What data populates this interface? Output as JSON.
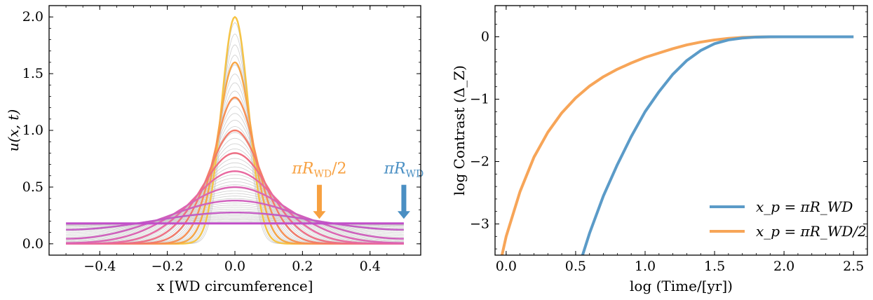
{
  "chart_data": [
    {
      "type": "line",
      "title": "",
      "xlabel": "x [WD circumference]",
      "ylabel": "u(x, t)",
      "xlim": [
        -0.55,
        0.55
      ],
      "ylim": [
        -0.1,
        2.1
      ],
      "xticks": [
        -0.4,
        -0.2,
        0.0,
        0.2,
        0.4
      ],
      "xtick_labels": [
        "−0.4",
        "−0.2",
        "0.0",
        "0.2",
        "0.4"
      ],
      "yticks": [
        0.0,
        0.5,
        1.0,
        1.5,
        2.0
      ],
      "ytick_labels": [
        "0.0",
        "0.5",
        "1.0",
        "1.5",
        "2.0"
      ],
      "domain": [
        -0.5,
        0.5
      ],
      "gray_profiles": {
        "count": 48,
        "sigma_min": 0.035,
        "sigma_max": 0.42,
        "color": "#bdbdbd"
      },
      "highlighted_profiles": [
        {
          "sigma": 0.04,
          "color": "#f6c445"
        },
        {
          "sigma": 0.05,
          "color": "#f7a646"
        },
        {
          "sigma": 0.062,
          "color": "#f79055"
        },
        {
          "sigma": 0.08,
          "color": "#f37b6a"
        },
        {
          "sigma": 0.1,
          "color": "#ee6f84"
        },
        {
          "sigma": 0.125,
          "color": "#e869a0"
        },
        {
          "sigma": 0.16,
          "color": "#dc64b4"
        },
        {
          "sigma": 0.21,
          "color": "#cf5fbd"
        },
        {
          "sigma": 0.29,
          "color": "#c35bc4"
        }
      ],
      "flat_level": {
        "y": 0.18,
        "color": "#c14fc9"
      },
      "annotations": [
        {
          "text": "πR_WD/2",
          "x": 0.25,
          "y_text": 0.62,
          "arrow_from": 0.52,
          "arrow_to": 0.22,
          "color": "#f7a040"
        },
        {
          "text": "πR_WD",
          "x": 0.5,
          "y_text": 0.62,
          "arrow_from": 0.52,
          "arrow_to": 0.22,
          "color": "#4a8fc3"
        }
      ]
    },
    {
      "type": "line",
      "title": "",
      "xlabel": "log (Time/[yr])",
      "ylabel": "log Contrast (Δ_Z)",
      "xlim": [
        -0.08,
        2.6
      ],
      "ylim": [
        -3.5,
        0.5
      ],
      "xticks": [
        0.0,
        0.5,
        1.0,
        1.5,
        2.0,
        2.5
      ],
      "xtick_labels": [
        "0.0",
        "0.5",
        "1.0",
        "1.5",
        "2.0",
        "2.5"
      ],
      "yticks": [
        0,
        -1,
        -2,
        -3
      ],
      "ytick_labels": [
        "0",
        "−1",
        "−2",
        "−3"
      ],
      "series": [
        {
          "name": "x_p = πR_WD",
          "color": "#5b9bc8",
          "x": [
            0.55,
            0.6,
            0.7,
            0.8,
            0.9,
            1.0,
            1.1,
            1.2,
            1.3,
            1.4,
            1.5,
            1.6,
            1.7,
            1.8,
            1.9,
            2.0,
            2.5
          ],
          "y": [
            -3.5,
            -3.15,
            -2.55,
            -2.05,
            -1.6,
            -1.2,
            -0.88,
            -0.6,
            -0.38,
            -0.22,
            -0.11,
            -0.05,
            -0.02,
            -0.005,
            0.0,
            0.0,
            0.0
          ]
        },
        {
          "name": "x_p = πR_WD/2",
          "color": "#f7a558",
          "x": [
            -0.03,
            0.0,
            0.1,
            0.2,
            0.3,
            0.4,
            0.5,
            0.6,
            0.7,
            0.8,
            0.9,
            1.0,
            1.1,
            1.2,
            1.3,
            1.4,
            1.5,
            1.6,
            1.7,
            1.8,
            2.0,
            2.5
          ],
          "y": [
            -3.5,
            -3.2,
            -2.48,
            -1.93,
            -1.53,
            -1.22,
            -0.98,
            -0.79,
            -0.64,
            -0.52,
            -0.42,
            -0.33,
            -0.26,
            -0.19,
            -0.13,
            -0.085,
            -0.05,
            -0.025,
            -0.01,
            -0.003,
            0.0,
            0.0
          ]
        }
      ],
      "legend": {
        "placement": "lower-right",
        "entries": [
          "x_p = πR_WD",
          "x_p = πR_WD/2"
        ]
      }
    }
  ]
}
